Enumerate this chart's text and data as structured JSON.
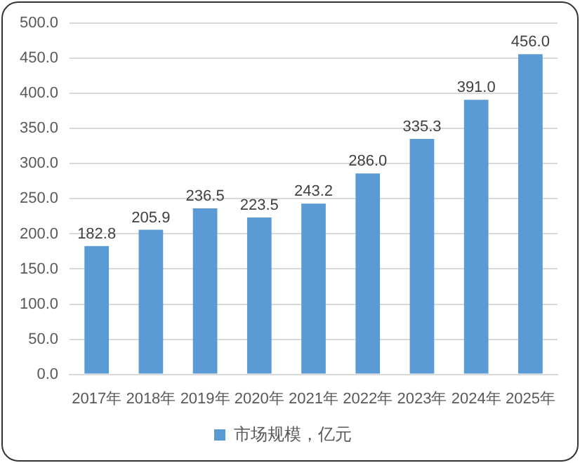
{
  "chart_data": {
    "type": "bar",
    "categories": [
      "2017年",
      "2018年",
      "2019年",
      "2020年",
      "2021年",
      "2022年",
      "2023年",
      "2024年",
      "2025年"
    ],
    "series": [
      {
        "name": "市场规模，亿元",
        "color": "#5b9bd5",
        "values": [
          182.8,
          205.9,
          236.5,
          223.5,
          243.2,
          286.0,
          335.3,
          391.0,
          456.0
        ],
        "value_labels": [
          "182.8",
          "205.9",
          "236.5",
          "223.5",
          "243.2",
          "286.0",
          "335.3",
          "391.0",
          "456.0"
        ]
      }
    ],
    "ylim": [
      0,
      500
    ],
    "yticks": [
      {
        "value": 0,
        "label": "0.0"
      },
      {
        "value": 50,
        "label": "50.0"
      },
      {
        "value": 100,
        "label": "100.0"
      },
      {
        "value": 150,
        "label": "150.0"
      },
      {
        "value": 200,
        "label": "200.0"
      },
      {
        "value": 250,
        "label": "250.0"
      },
      {
        "value": 300,
        "label": "300.0"
      },
      {
        "value": 350,
        "label": "350.0"
      },
      {
        "value": 400,
        "label": "400.0"
      },
      {
        "value": 450,
        "label": "450.0"
      },
      {
        "value": 500,
        "label": "500.0"
      }
    ],
    "grid": "y",
    "legend": "bottom"
  }
}
